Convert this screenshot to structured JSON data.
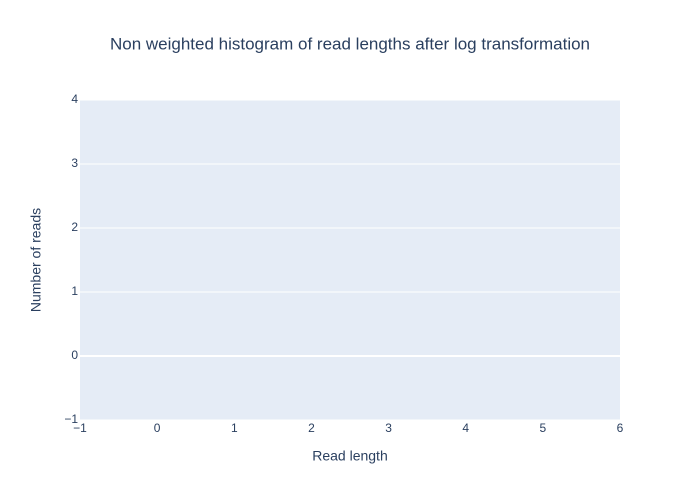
{
  "chart_data": {
    "type": "histogram",
    "title": "Non weighted histogram of read lengths after log transformation",
    "x_label": "Read length",
    "y_label": "Number of reads",
    "xlim": [
      -1,
      6
    ],
    "xticks": [
      {
        "value": -1,
        "label": "−1"
      },
      0,
      1,
      2,
      3,
      4,
      5,
      6
    ],
    "ylim": [
      -1,
      4
    ],
    "yticks": [
      {
        "value": -1,
        "label": "−1"
      },
      0,
      1,
      2,
      3,
      4
    ],
    "xgrid": false,
    "ygrid": true,
    "plot_background": "#e5ecf6",
    "grid_color": "#ffffff"
  }
}
